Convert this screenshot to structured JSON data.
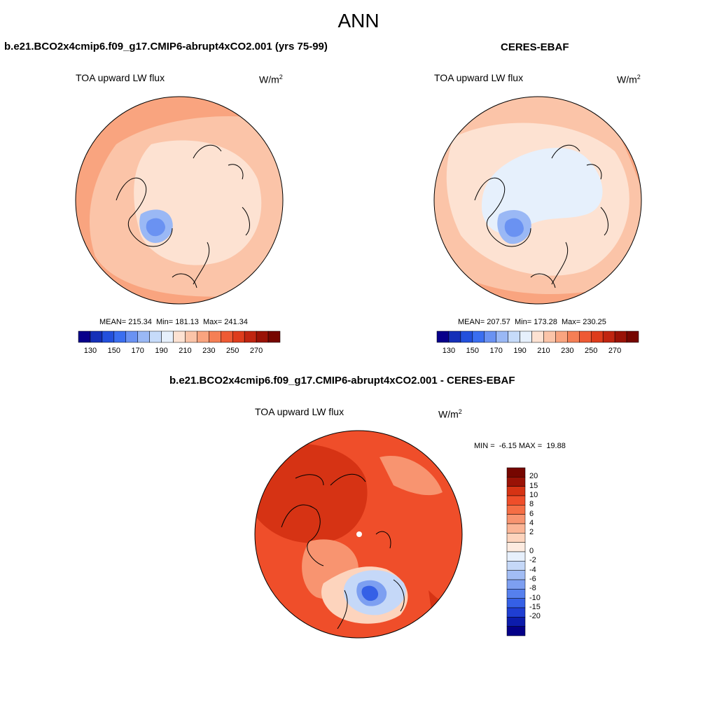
{
  "title": "ANN",
  "panels": {
    "left": {
      "title": "b.e21.BCO2x4cmip6.f09_g17.CMIP6-abrupt4xCO2.001 (yrs 75-99)",
      "variable": "TOA upward LW flux",
      "units_base": "W/m",
      "units_sup": "2",
      "stats": "MEAN= 215.34  Min= 181.13  Max= 241.34"
    },
    "right": {
      "title": "CERES-EBAF",
      "variable": "TOA upward LW flux",
      "units_base": "W/m",
      "units_sup": "2",
      "stats": "MEAN= 207.57  Min= 173.28  Max= 230.25"
    },
    "diff": {
      "title": "b.e21.BCO2x4cmip6.f09_g17.CMIP6-abrupt4xCO2.001 - CERES-EBAF",
      "variable": "TOA upward LW flux",
      "units_base": "W/m",
      "units_sup": "2",
      "stats": "MIN =  -6.15 MAX =  19.88"
    }
  },
  "colorbar_abs": {
    "colors": [
      "#08008a",
      "#1530b8",
      "#2350dc",
      "#3a6ef0",
      "#6a92f2",
      "#9ab8f5",
      "#c6dbfa",
      "#e6f0fc",
      "#fde2d2",
      "#fbc4a8",
      "#f9a47f",
      "#f57f55",
      "#ee5a34",
      "#de3c1c",
      "#c02510",
      "#9a1206",
      "#760600"
    ],
    "labels": [
      "130",
      "150",
      "170",
      "190",
      "210",
      "230",
      "250",
      "270"
    ]
  },
  "colorbar_diff": {
    "colors": [
      "#760600",
      "#9a1206",
      "#d63314",
      "#ef4e2a",
      "#f56e45",
      "#f89470",
      "#fbb596",
      "#fdd4bd",
      "#fdebe0",
      "#e7f0fc",
      "#c5d8f8",
      "#a2bdf4",
      "#7d9ff1",
      "#5680ee",
      "#3560e6",
      "#1f3ed2",
      "#0c1cac",
      "#040088"
    ],
    "labels": [
      "20",
      "15",
      "10",
      "8",
      "6",
      "4",
      "2",
      "0",
      "-2",
      "-4",
      "-6",
      "-8",
      "-10",
      "-15",
      "-20"
    ]
  },
  "map_colors": {
    "abs_low": "#e6f0fc",
    "abs_mid": "#fde2d2",
    "abs_orange": "#fbc4a8",
    "abs_orange2": "#f9a47f",
    "abs_blue": "#c6dbfa",
    "abs_blue2": "#9ab8f5",
    "abs_blue3": "#6a92f2",
    "diff_base": "#ef4e2a",
    "diff_dark": "#d63314",
    "diff_light": "#f89470",
    "diff_pale": "#fdd4bd",
    "diff_blue": "#c5d8f8",
    "diff_blue2": "#7d9ff1",
    "diff_blue3": "#3560e6"
  }
}
